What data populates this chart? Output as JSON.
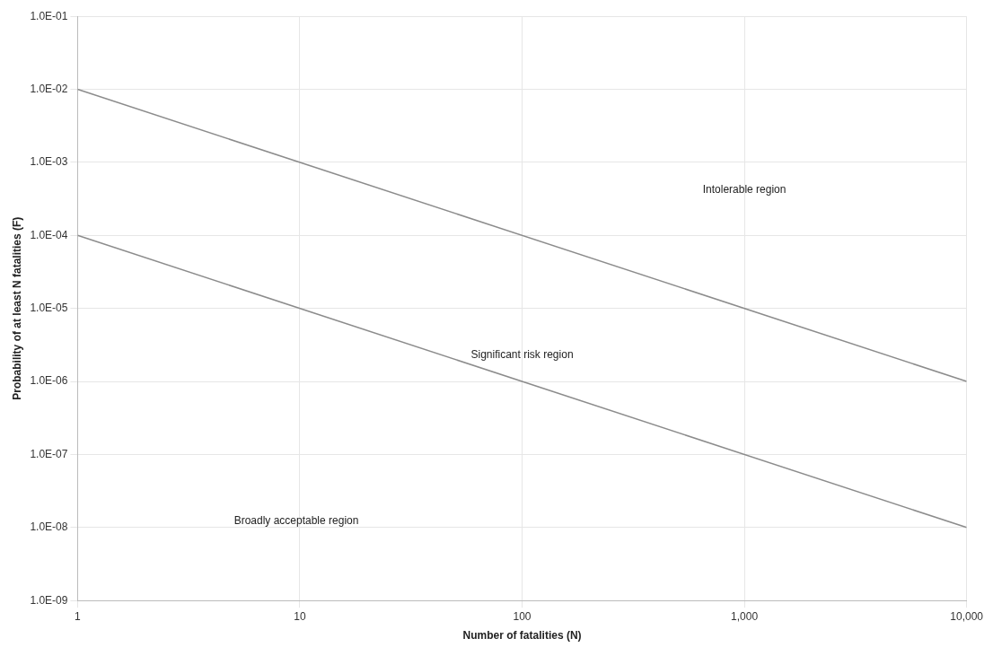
{
  "chart_data": {
    "type": "line",
    "xlabel": "Number of fatalities (N)",
    "ylabel": "Probability of at least N fatalities (F)",
    "log": "xy",
    "grid": true,
    "marker": "none",
    "line_style": "solid",
    "legend": false,
    "xlim": [
      1,
      10000
    ],
    "ylim": [
      1e-09,
      0.1
    ],
    "xticks": [
      1,
      10,
      100,
      {
        "value": 1000,
        "label": "1,000"
      },
      {
        "value": 10000,
        "label": "10,000"
      }
    ],
    "yticks": [
      {
        "value": 1e-09,
        "label": "1.0E-09"
      },
      {
        "value": 1e-08,
        "label": "1.0E-08"
      },
      {
        "value": 1e-07,
        "label": "1.0E-07"
      },
      {
        "value": 1e-06,
        "label": "1.0E-06"
      },
      {
        "value": 1e-05,
        "label": "1.0E-05"
      },
      {
        "value": 0.0001,
        "label": "1.0E-04"
      },
      {
        "value": 0.001,
        "label": "1.0E-03"
      },
      {
        "value": 0.01,
        "label": "1.0E-02"
      },
      {
        "value": 0.1,
        "label": "1.0E-01"
      }
    ],
    "series": [
      {
        "color": "#8c8c8c",
        "values": [
          0.01,
          1e-06
        ]
      },
      {
        "color": "#8c8c8c",
        "values": [
          0.0001,
          1e-08
        ]
      }
    ],
    "x": [
      1,
      10000
    ],
    "annotations": [
      "Intolerable region",
      "Significant risk region",
      "Broadly acceptable region"
    ]
  }
}
